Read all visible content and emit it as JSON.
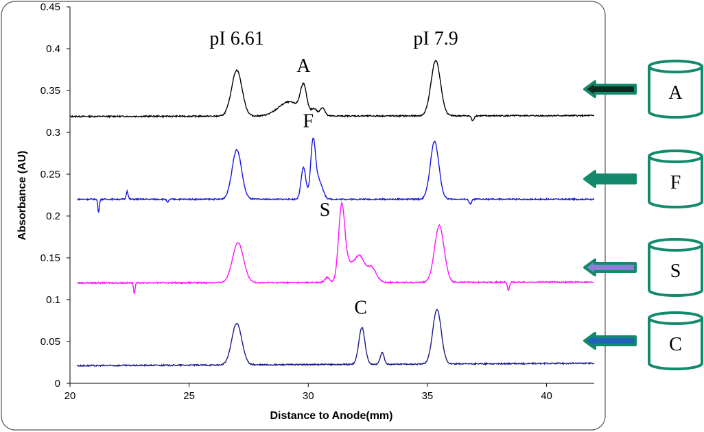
{
  "chart_data": {
    "type": "line",
    "title": "",
    "xlabel": "Distance to Anode(mm)",
    "ylabel": "Absorbance (AU)",
    "xlim": [
      20,
      42
    ],
    "ylim": [
      0,
      0.45
    ],
    "xticks": [
      20,
      25,
      30,
      35,
      40
    ],
    "yticks": [
      0,
      0.05,
      0.1,
      0.15,
      0.2,
      0.25,
      0.3,
      0.35,
      0.4,
      0.45
    ],
    "ytick_labels": [
      "0",
      "0.05",
      "0.1",
      "0.15",
      "0.2",
      "0.25",
      "0.3",
      "0.35",
      "0.4",
      "0.45"
    ],
    "grid": false,
    "annotations": [
      {
        "text": "pI 6.61",
        "x": 27.0,
        "y": 0.405
      },
      {
        "text": "pI 7.9",
        "x": 35.35,
        "y": 0.405
      },
      {
        "text": "A",
        "x": 29.8,
        "y": 0.372
      },
      {
        "text": "F",
        "x": 30.0,
        "y": 0.306
      },
      {
        "text": "S",
        "x": 30.7,
        "y": 0.2
      },
      {
        "text": "C",
        "x": 32.2,
        "y": 0.083
      }
    ],
    "series": [
      {
        "name": "A",
        "color": "#000000",
        "x_start": 20.0,
        "baseline": [
          0.319,
          0.32
        ],
        "peaks": [
          {
            "x": 27.0,
            "height": 0.055,
            "width": 0.22
          },
          {
            "x": 29.2,
            "height": 0.017,
            "width": 0.45
          },
          {
            "x": 29.8,
            "height": 0.032,
            "width": 0.13
          },
          {
            "x": 30.25,
            "height": 0.008,
            "width": 0.12
          },
          {
            "x": 30.6,
            "height": 0.01,
            "width": 0.1
          },
          {
            "x": 35.35,
            "height": 0.066,
            "width": 0.2
          },
          {
            "x": 36.9,
            "height": -0.006,
            "width": 0.05
          }
        ]
      },
      {
        "name": "F",
        "color": "#1515e0",
        "x_start": 20.3,
        "baseline": [
          0.22,
          0.22
        ],
        "peaks": [
          {
            "x": 21.2,
            "height": -0.016,
            "width": 0.03
          },
          {
            "x": 22.4,
            "height": 0.01,
            "width": 0.04
          },
          {
            "x": 24.1,
            "height": -0.004,
            "width": 0.04
          },
          {
            "x": 27.0,
            "height": 0.059,
            "width": 0.2
          },
          {
            "x": 29.8,
            "height": 0.038,
            "width": 0.1
          },
          {
            "x": 30.2,
            "height": 0.068,
            "width": 0.1
          },
          {
            "x": 30.45,
            "height": 0.022,
            "width": 0.15
          },
          {
            "x": 35.3,
            "height": 0.069,
            "width": 0.18
          },
          {
            "x": 36.8,
            "height": -0.006,
            "width": 0.05
          }
        ]
      },
      {
        "name": "S",
        "color": "#ff10ff",
        "x_start": 20.3,
        "baseline": [
          0.12,
          0.121
        ],
        "peaks": [
          {
            "x": 22.7,
            "height": -0.013,
            "width": 0.03
          },
          {
            "x": 27.05,
            "height": 0.048,
            "width": 0.23
          },
          {
            "x": 30.8,
            "height": 0.006,
            "width": 0.1
          },
          {
            "x": 31.4,
            "height": 0.088,
            "width": 0.13
          },
          {
            "x": 31.7,
            "height": 0.02,
            "width": 0.2
          },
          {
            "x": 32.15,
            "height": 0.03,
            "width": 0.2
          },
          {
            "x": 32.65,
            "height": 0.018,
            "width": 0.2
          },
          {
            "x": 35.5,
            "height": 0.068,
            "width": 0.2
          },
          {
            "x": 38.4,
            "height": -0.01,
            "width": 0.04
          }
        ]
      },
      {
        "name": "C",
        "color": "#1a1a85",
        "x_start": 20.3,
        "baseline": [
          0.021,
          0.024
        ],
        "peaks": [
          {
            "x": 27.0,
            "height": 0.05,
            "width": 0.21
          },
          {
            "x": 32.25,
            "height": 0.044,
            "width": 0.13
          },
          {
            "x": 33.1,
            "height": 0.014,
            "width": 0.08
          },
          {
            "x": 35.4,
            "height": 0.065,
            "width": 0.18
          }
        ]
      }
    ]
  },
  "side_panel": {
    "accent": "#138a6c",
    "items": [
      {
        "label": "A",
        "arrow_fill": "#0d2a1f"
      },
      {
        "label": "F",
        "arrow_fill": "#138a6c"
      },
      {
        "label": "S",
        "arrow_fill": "#8c7fd8"
      },
      {
        "label": "C",
        "arrow_fill": "#1e63b8"
      }
    ]
  }
}
